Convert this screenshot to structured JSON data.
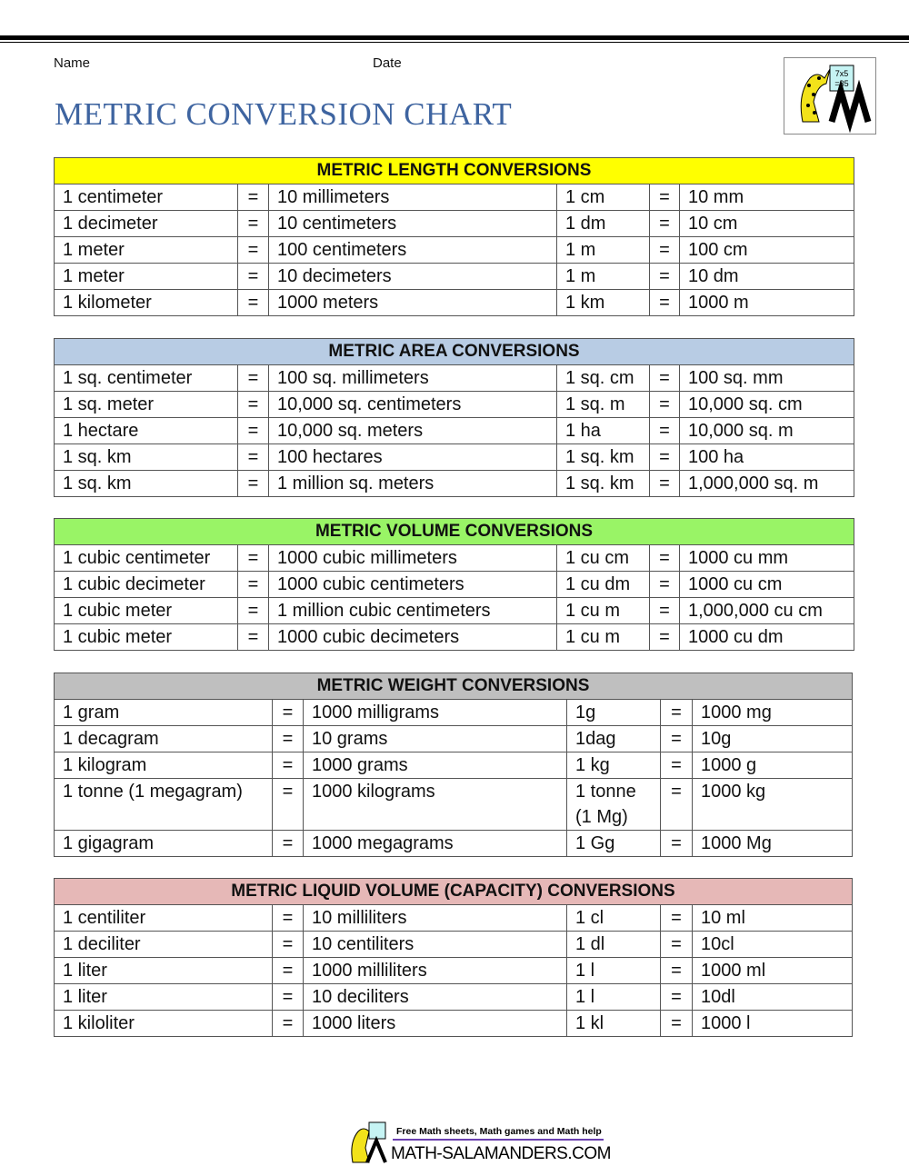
{
  "header": {
    "name_label": "Name",
    "date_label": "Date",
    "title": "METRIC CONVERSION CHART"
  },
  "logo": {
    "board_text": [
      "7x5",
      "=35"
    ]
  },
  "footer": {
    "tagline": "Free Math sheets, Math games and Math help",
    "site": "MATH-SALAMANDERS.COM"
  },
  "colors": {
    "length": "#ffff00",
    "area": "#b8cce4",
    "volume": "#99f466",
    "weight": "#bfbfbf",
    "liquid": "#e6b8b7",
    "title": "#3e64a0"
  },
  "tables": [
    {
      "key": "length",
      "title": "METRIC LENGTH CONVERSIONS",
      "rows": [
        [
          "1 centimeter",
          "=",
          "10 millimeters",
          "1 cm",
          "=",
          "10 mm"
        ],
        [
          "1 decimeter",
          "=",
          "10 centimeters",
          "1 dm",
          "=",
          "10 cm"
        ],
        [
          "1 meter",
          "=",
          "100 centimeters",
          "1 m",
          "=",
          "100 cm"
        ],
        [
          "1 meter",
          "=",
          "10 decimeters",
          "1 m",
          "=",
          "10 dm"
        ],
        [
          "1 kilometer",
          "=",
          "1000 meters",
          "1 km",
          "=",
          "1000 m"
        ]
      ]
    },
    {
      "key": "area",
      "title": "METRIC AREA CONVERSIONS",
      "rows": [
        [
          "1 sq. centimeter",
          "=",
          "100 sq. millimeters",
          "1 sq. cm",
          "=",
          "100 sq. mm"
        ],
        [
          "1 sq. meter",
          "=",
          "10,000 sq. centimeters",
          "1 sq. m",
          "=",
          "10,000 sq. cm"
        ],
        [
          "1 hectare",
          "=",
          "10,000 sq. meters",
          "1 ha",
          "=",
          "10,000 sq. m"
        ],
        [
          "1 sq. km",
          "=",
          "100 hectares",
          "1 sq. km",
          "=",
          "100 ha"
        ],
        [
          "1 sq. km",
          "=",
          "1 million sq. meters",
          "1 sq. km",
          "=",
          "1,000,000 sq. m"
        ]
      ]
    },
    {
      "key": "volume",
      "title": "METRIC VOLUME CONVERSIONS",
      "rows": [
        [
          "1 cubic centimeter",
          "=",
          "1000 cubic millimeters",
          "1 cu cm",
          "=",
          "1000 cu mm"
        ],
        [
          "1 cubic decimeter",
          "=",
          "1000 cubic centimeters",
          "1 cu dm",
          "=",
          "1000 cu cm"
        ],
        [
          "1 cubic meter",
          "=",
          "1 million cubic centimeters",
          "1 cu m",
          "=",
          "1,000,000 cu cm"
        ],
        [
          "1 cubic meter",
          "=",
          "1000 cubic decimeters",
          "1 cu m",
          "=",
          "1000 cu dm"
        ]
      ]
    },
    {
      "key": "weight",
      "title": "METRIC WEIGHT CONVERSIONS",
      "rows": [
        [
          "1 gram",
          "=",
          "1000 milligrams",
          "1g",
          "=",
          "1000 mg"
        ],
        [
          "1 decagram",
          "=",
          "10 grams",
          "1dag",
          "=",
          "10g"
        ],
        [
          "1 kilogram",
          "=",
          "1000 grams",
          "1 kg",
          "=",
          "1000 g"
        ],
        [
          "1 tonne (1 megagram)",
          "=",
          "1000 kilograms",
          "1 tonne\n(1 Mg)",
          "=",
          "1000 kg"
        ],
        [
          "1 gigagram",
          "=",
          "1000 megagrams",
          "1 Gg",
          "=",
          "1000 Mg"
        ]
      ]
    },
    {
      "key": "liquid",
      "title": "METRIC LIQUID VOLUME (CAPACITY) CONVERSIONS",
      "rows": [
        [
          "1 centiliter",
          "=",
          "10 milliliters",
          "1 cl",
          "=",
          "10 ml"
        ],
        [
          "1 deciliter",
          "=",
          "10 centiliters",
          "1 dl",
          "=",
          "10cl"
        ],
        [
          "1 liter",
          "=",
          "1000 milliliters",
          "1 l",
          "=",
          "1000 ml"
        ],
        [
          "1 liter",
          "=",
          "10 deciliters",
          "1 l",
          "=",
          "10dl"
        ],
        [
          "1 kiloliter",
          "=",
          "1000 liters",
          "1 kl",
          "=",
          "1000 l"
        ]
      ]
    }
  ]
}
